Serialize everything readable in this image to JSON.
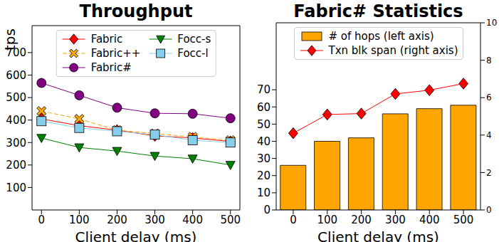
{
  "chart_data": [
    {
      "type": "line",
      "title": "Throughput",
      "x_label": "Client delay (ms)",
      "y_label": "tps",
      "x": [
        0,
        100,
        200,
        300,
        400,
        500
      ],
      "xlim": [
        -25,
        525
      ],
      "xticks": [
        0,
        100,
        200,
        300,
        400,
        500
      ],
      "ylim": [
        0,
        820
      ],
      "yticks": [
        100,
        200,
        300,
        400,
        500,
        600,
        700
      ],
      "legend": "upper center",
      "series": [
        {
          "name": "Fabric",
          "color": "#ff0000",
          "marker": "diamond",
          "line_style": "solid",
          "values": [
            405,
            375,
            355,
            330,
            320,
            305
          ]
        },
        {
          "name": "Fabric++",
          "color": "#ffa500",
          "marker": "X",
          "line_style": "dashed",
          "values": [
            440,
            405,
            355,
            340,
            325,
            310
          ]
        },
        {
          "name": "Fabric#",
          "color": "#800080",
          "marker": "circle",
          "line_style": "solid",
          "values": [
            565,
            510,
            455,
            430,
            428,
            408
          ]
        },
        {
          "name": "Focc-s",
          "color": "#008000",
          "marker": "triangle_down",
          "line_style": "solid",
          "values": [
            320,
            278,
            262,
            240,
            228,
            200
          ]
        },
        {
          "name": "Focc-l",
          "color": "#87ceeb",
          "marker": "square",
          "line_style": "solid",
          "values": [
            395,
            365,
            350,
            335,
            310,
            300
          ]
        }
      ]
    },
    {
      "type": "bar",
      "title": "Fabric# Statistics",
      "x_label": "Client delay (ms)",
      "categories": [
        "0",
        "100",
        "200",
        "300",
        "400",
        "500"
      ],
      "ylim": [
        0,
        109
      ],
      "yticks": [
        0,
        10,
        20,
        30,
        40,
        50,
        60,
        70
      ],
      "y2lim": [
        0,
        10
      ],
      "y2ticks": [
        0,
        2,
        4,
        6,
        8,
        10
      ],
      "legend": "upper center",
      "series": [
        {
          "name": "# of hops (left axis)",
          "type": "bar",
          "color": "#ffa500",
          "values": [
            26,
            40,
            42,
            56,
            59,
            61
          ]
        },
        {
          "name": "Txn blk span (right axis)",
          "type": "line",
          "axis": "y2",
          "color": "#ff0000",
          "marker": "diamond",
          "line_style": "solid",
          "values": [
            4.1,
            5.1,
            5.15,
            6.2,
            6.4,
            6.75
          ]
        }
      ]
    }
  ]
}
